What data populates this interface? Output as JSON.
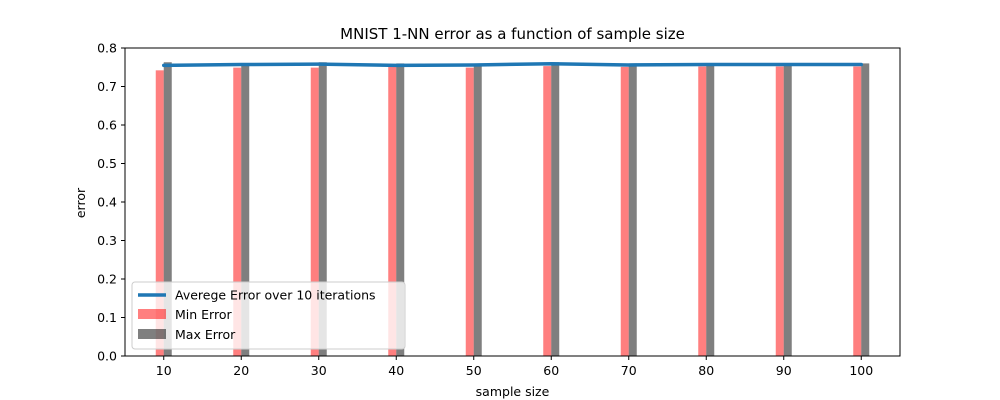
{
  "chart_data": {
    "type": "bar",
    "title": "MNIST 1-NN error as a function of sample size",
    "xlabel": "sample size",
    "ylabel": "error",
    "categories": [
      "10",
      "20",
      "30",
      "40",
      "50",
      "60",
      "70",
      "80",
      "90",
      "100"
    ],
    "x": [
      10,
      20,
      30,
      40,
      50,
      60,
      70,
      80,
      90,
      100
    ],
    "ylim": [
      0,
      0.8
    ],
    "yticks": [
      "0.0",
      "0.1",
      "0.2",
      "0.3",
      "0.4",
      "0.5",
      "0.6",
      "0.7",
      "0.8"
    ],
    "xlim": [
      5,
      105
    ],
    "grid": false,
    "legend_position": "lower-left",
    "series": [
      {
        "name": "Averege Error over 10 iterations",
        "kind": "line",
        "color": "#1f77b4",
        "values": [
          0.755,
          0.757,
          0.758,
          0.755,
          0.756,
          0.759,
          0.756,
          0.757,
          0.757,
          0.757
        ]
      },
      {
        "name": "Min Error",
        "kind": "bar",
        "color": "#ff0000",
        "opacity": 0.5,
        "values": [
          0.742,
          0.749,
          0.749,
          0.752,
          0.749,
          0.753,
          0.751,
          0.752,
          0.752,
          0.752
        ]
      },
      {
        "name": "Max Error",
        "kind": "bar",
        "color": "#000000",
        "opacity": 0.5,
        "values": [
          0.763,
          0.76,
          0.763,
          0.76,
          0.759,
          0.763,
          0.76,
          0.76,
          0.76,
          0.76
        ]
      }
    ]
  }
}
